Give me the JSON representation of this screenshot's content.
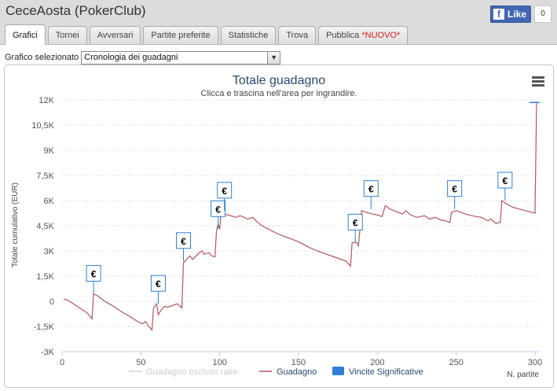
{
  "app": {
    "title": "CeceAosta (PokerClub)"
  },
  "facebook": {
    "like_label": "Like",
    "like_count": "0"
  },
  "tabs": [
    {
      "label": "Grafici",
      "active": true
    },
    {
      "label": "Tornei"
    },
    {
      "label": "Avversari"
    },
    {
      "label": "Partite preferite"
    },
    {
      "label": "Statistiche"
    },
    {
      "label": "Trova"
    },
    {
      "label": "Pubblica",
      "badge": "*NUOVO*"
    }
  ],
  "selector": {
    "label": "Grafico selezionato",
    "value": "Cronologia dei guadagni"
  },
  "chart_data": {
    "type": "line",
    "title": "Totale guadagno",
    "subtitle": "Clicca e trascina nell'area per ingrandire.",
    "ylabel": "Totale cumulativo (EUR)",
    "xlabel": "N. partite",
    "xlim": [
      0,
      303
    ],
    "ylim": [
      -3000,
      12000
    ],
    "x_ticks": [
      0,
      50,
      100,
      150,
      200,
      250,
      300
    ],
    "y_ticks": [
      -3000,
      -1500,
      0,
      1500,
      3000,
      4500,
      6000,
      7500,
      9000,
      10500,
      12000
    ],
    "y_tick_labels": [
      "-3K",
      "-1,5K",
      "0",
      "1,5K",
      "3K",
      "4,5K",
      "6K",
      "7,5K",
      "9K",
      "10,5K",
      "12K"
    ],
    "x_tick_labels": [
      "0",
      "50",
      "100",
      "150",
      "200",
      "250",
      "300"
    ],
    "grid": true,
    "legend_position": "bottom",
    "series": [
      {
        "name": "Guadagno escluso rake",
        "color": "#d0d0d0",
        "visible": false
      },
      {
        "name": "Guadagno",
        "color": "#b5545c",
        "points": [
          [
            1,
            150
          ],
          [
            4,
            50
          ],
          [
            8,
            -200
          ],
          [
            12,
            -450
          ],
          [
            16,
            -700
          ],
          [
            19,
            -1050
          ],
          [
            20,
            450
          ],
          [
            23,
            300
          ],
          [
            27,
            0
          ],
          [
            31,
            -200
          ],
          [
            35,
            -450
          ],
          [
            39,
            -700
          ],
          [
            43,
            -900
          ],
          [
            47,
            -1150
          ],
          [
            51,
            -1350
          ],
          [
            53,
            -1200
          ],
          [
            55,
            -1500
          ],
          [
            57,
            -1700
          ],
          [
            58,
            -400
          ],
          [
            60,
            -150
          ],
          [
            61,
            -800
          ],
          [
            63,
            -500
          ],
          [
            65,
            -300
          ],
          [
            67,
            -350
          ],
          [
            70,
            -250
          ],
          [
            73,
            -150
          ],
          [
            75,
            -300
          ],
          [
            76,
            -400
          ],
          [
            77,
            2300
          ],
          [
            79,
            2500
          ],
          [
            81,
            2700
          ],
          [
            83,
            2500
          ],
          [
            85,
            2700
          ],
          [
            87,
            2900
          ],
          [
            89,
            3000
          ],
          [
            90,
            2800
          ],
          [
            93,
            2900
          ],
          [
            95,
            2700
          ],
          [
            97,
            2650
          ],
          [
            98,
            4200
          ],
          [
            99,
            4600
          ],
          [
            100,
            4300
          ],
          [
            101,
            5500
          ],
          [
            103,
            5200
          ],
          [
            107,
            5100
          ],
          [
            110,
            5000
          ],
          [
            113,
            5100
          ],
          [
            118,
            4900
          ],
          [
            121,
            5000
          ],
          [
            124,
            4700
          ],
          [
            127,
            4500
          ],
          [
            131,
            4300
          ],
          [
            135,
            4100
          ],
          [
            140,
            3900
          ],
          [
            146,
            3700
          ],
          [
            151,
            3500
          ],
          [
            157,
            3200
          ],
          [
            162,
            3000
          ],
          [
            168,
            2800
          ],
          [
            174,
            2600
          ],
          [
            180,
            2400
          ],
          [
            183,
            2100
          ],
          [
            184,
            3500
          ],
          [
            187,
            3500
          ],
          [
            188,
            3300
          ],
          [
            190,
            5400
          ],
          [
            193,
            5300
          ],
          [
            197,
            5200
          ],
          [
            200,
            5150
          ],
          [
            203,
            5050
          ],
          [
            205,
            5700
          ],
          [
            208,
            5500
          ],
          [
            212,
            5350
          ],
          [
            216,
            5200
          ],
          [
            218,
            5400
          ],
          [
            221,
            5150
          ],
          [
            225,
            5000
          ],
          [
            230,
            5100
          ],
          [
            233,
            4900
          ],
          [
            237,
            5000
          ],
          [
            240,
            4850
          ],
          [
            243,
            4800
          ],
          [
            246,
            4700
          ],
          [
            247,
            5300
          ],
          [
            250,
            5400
          ],
          [
            253,
            5300
          ],
          [
            256,
            5200
          ],
          [
            260,
            5100
          ],
          [
            263,
            5050
          ],
          [
            266,
            5000
          ],
          [
            270,
            4800
          ],
          [
            272,
            4900
          ],
          [
            275,
            4650
          ],
          [
            278,
            4700
          ],
          [
            279,
            6000
          ],
          [
            282,
            5800
          ],
          [
            286,
            5600
          ],
          [
            290,
            5500
          ],
          [
            294,
            5400
          ],
          [
            298,
            5300
          ],
          [
            300,
            5250
          ],
          [
            301,
            11800
          ]
        ]
      },
      {
        "name": "Vincite Significative",
        "color": "#2f7ed8",
        "marker": "flag"
      }
    ],
    "flags": [
      {
        "x": 20,
        "y": 450,
        "label": "€"
      },
      {
        "x": 61,
        "y": -150,
        "label": "€"
      },
      {
        "x": 77,
        "y": 2400,
        "label": "€"
      },
      {
        "x": 99,
        "y": 4300,
        "label": "€"
      },
      {
        "x": 103,
        "y": 5400,
        "label": "€"
      },
      {
        "x": 186,
        "y": 3500,
        "label": "€"
      },
      {
        "x": 196,
        "y": 5500,
        "label": "€"
      },
      {
        "x": 249,
        "y": 5500,
        "label": "€"
      },
      {
        "x": 281,
        "y": 6000,
        "label": "€"
      }
    ]
  }
}
